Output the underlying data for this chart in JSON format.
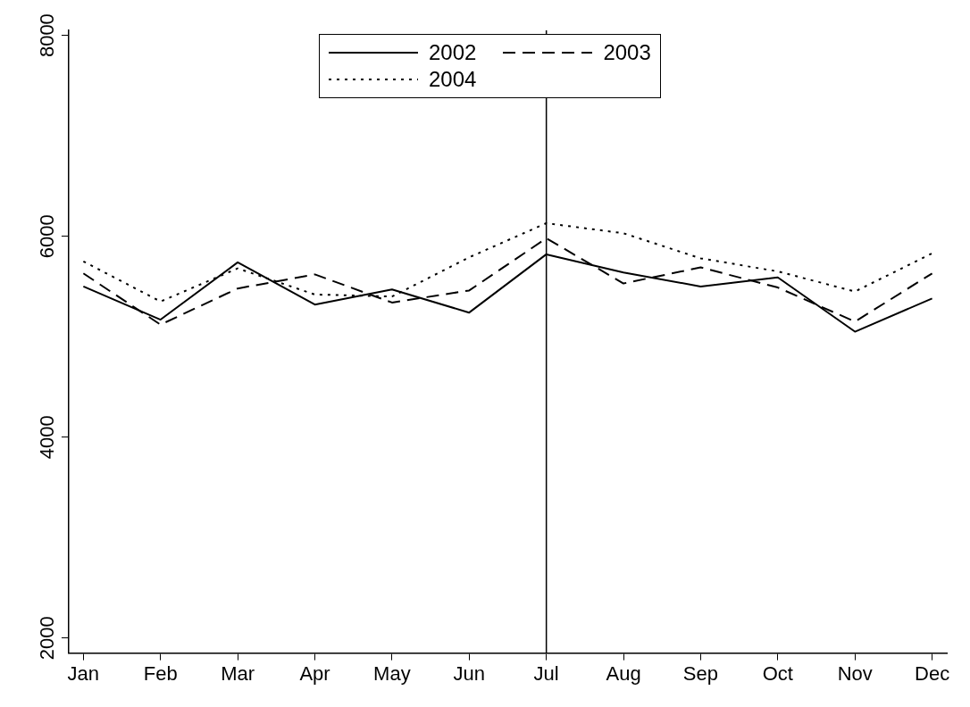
{
  "chart_data": {
    "type": "line",
    "categories": [
      "Jan",
      "Feb",
      "Mar",
      "Apr",
      "May",
      "Jun",
      "Jul",
      "Aug",
      "Sep",
      "Oct",
      "Nov",
      "Dec"
    ],
    "series": [
      {
        "name": "2002",
        "color": "#000000",
        "line_style": "solid",
        "values": [
          5500,
          5170,
          5740,
          5320,
          5470,
          5240,
          5820,
          5640,
          5500,
          5590,
          5050,
          5380
        ]
      },
      {
        "name": "2003",
        "color": "#000000",
        "line_style": "dashed",
        "values": [
          5630,
          5120,
          5480,
          5620,
          5340,
          5460,
          5980,
          5530,
          5690,
          5490,
          5150,
          5630
        ]
      },
      {
        "name": "2004",
        "color": "#000000",
        "line_style": "dotted",
        "values": [
          5750,
          5350,
          5680,
          5420,
          5400,
          5790,
          6130,
          6030,
          5780,
          5650,
          5450,
          5830
        ]
      }
    ],
    "ylim": [
      1850,
      8050
    ],
    "yticks": [
      2000,
      4000,
      6000,
      8000
    ],
    "ref_lines": [
      {
        "axis": "x",
        "value": "Jul",
        "color": "#000000"
      }
    ],
    "legend": "top",
    "marker": "none",
    "grid": false
  }
}
